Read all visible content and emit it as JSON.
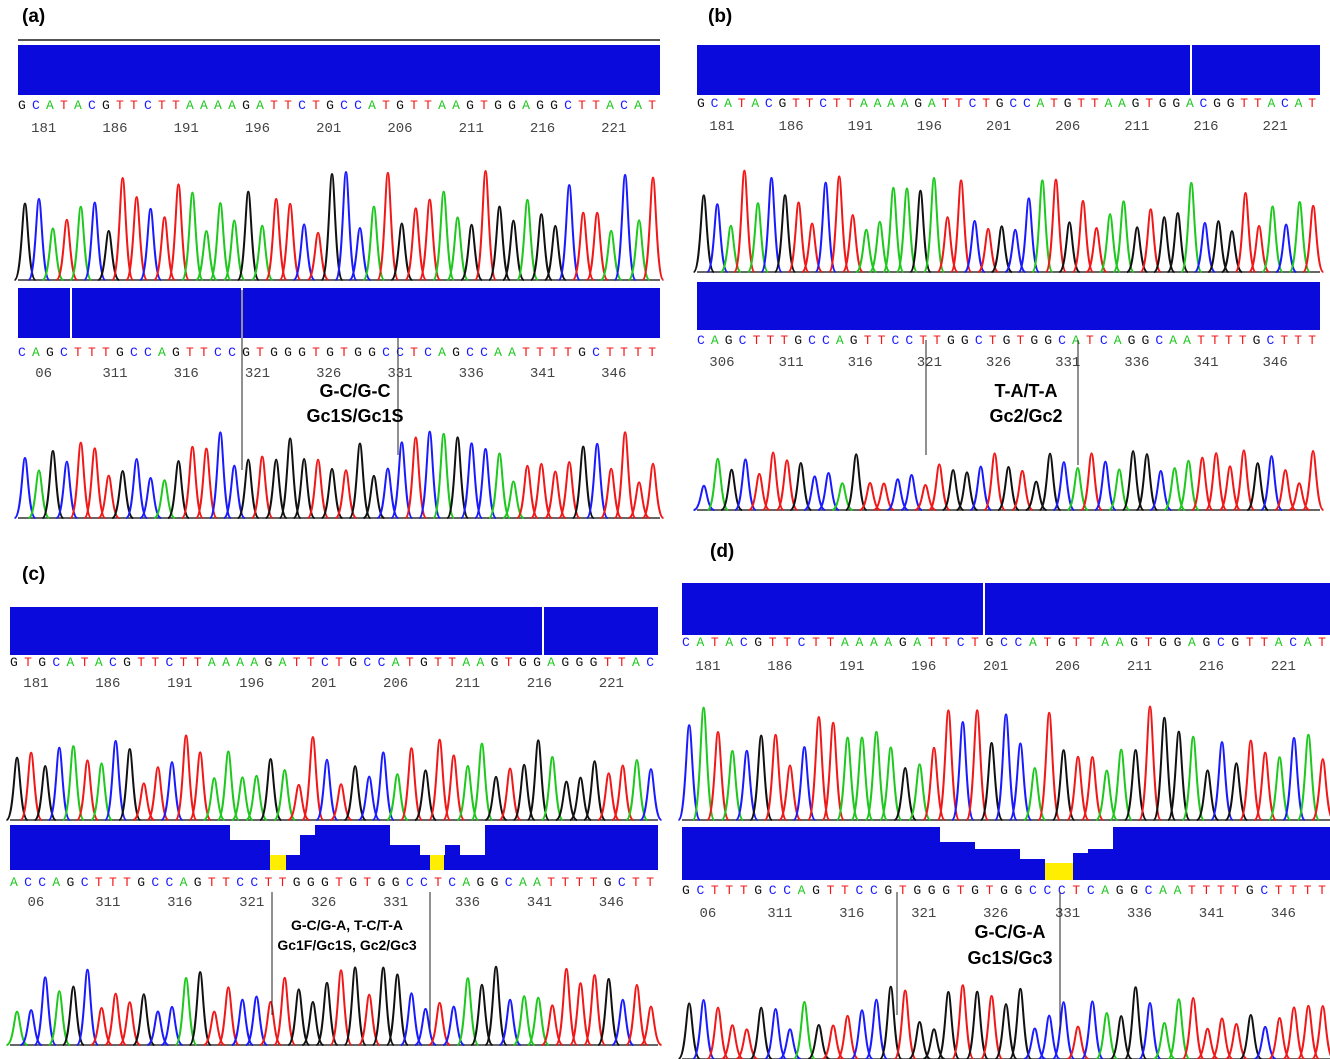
{
  "panels": [
    {
      "label": "(a)",
      "tracks": [
        {
          "sequence": "GCATACGTTCTTAAAAGATTCTGCCATGTTAAGTGGAGGCTTACAT",
          "positions": [
            "181",
            "186",
            "191",
            "196",
            "201",
            "206",
            "211",
            "216",
            "221"
          ]
        },
        {
          "sequence": "CAGCTTTGCCAGTTCCGTGGGTGTGGCCTCAGCCAATTTTGCTTTT",
          "positions": [
            "06",
            "311",
            "316",
            "321",
            "326",
            "331",
            "336",
            "341",
            "346"
          ]
        }
      ],
      "annotation": [
        "G-C/G-C",
        "Gc1S/Gc1S"
      ]
    },
    {
      "label": "(b)",
      "tracks": [
        {
          "sequence": "GCATACGTTCTTAAAAGATTCTGCCATGTTAAGTGGACGGTTACAT",
          "positions": [
            "181",
            "186",
            "191",
            "196",
            "201",
            "206",
            "211",
            "216",
            "221"
          ]
        },
        {
          "sequence": "CAGCTTTGCCAGTTCCTTGGCTGTGGCATCAGGCAATTTTGCTTT",
          "positions": [
            "306",
            "311",
            "316",
            "321",
            "326",
            "331",
            "336",
            "341",
            "346"
          ]
        }
      ],
      "annotation": [
        "T-A/T-A",
        "Gc2/Gc2"
      ]
    },
    {
      "label": "(c)",
      "tracks": [
        {
          "sequence": "GTGCATACGTTCTTAAAAGATTCTGCCATGTTAAGTGGAGGGTTAC",
          "positions": [
            "181",
            "186",
            "191",
            "196",
            "201",
            "206",
            "211",
            "216",
            "221"
          ]
        },
        {
          "sequence": "ACCAGCTTTGCCAGTTCCTTGGGTGTGGCCTCAGGCAATTTTGCTT",
          "positions": [
            "06",
            "311",
            "316",
            "321",
            "326",
            "331",
            "336",
            "341",
            "346"
          ]
        }
      ],
      "annotation": [
        "G-C/G-A, T-C/T-A",
        "Gc1F/Gc1S, Gc2/Gc3"
      ]
    },
    {
      "label": "(d)",
      "tracks": [
        {
          "sequence": "CATACGTTCTTAAAAGATTCTGCCATGTTAAGTGGAGCGTTACAT",
          "positions": [
            "181",
            "186",
            "191",
            "196",
            "201",
            "206",
            "211",
            "216",
            "221"
          ]
        },
        {
          "sequence": "GCTTTGCCAGTTCCGTGGGTGTGGCCCTCAGGCAATTTTGCTTTT",
          "positions": [
            "06",
            "311",
            "316",
            "321",
            "326",
            "331",
            "336",
            "341",
            "346"
          ]
        }
      ],
      "annotation": [
        "G-C/G-A",
        "Gc1S/Gc3"
      ]
    }
  ]
}
